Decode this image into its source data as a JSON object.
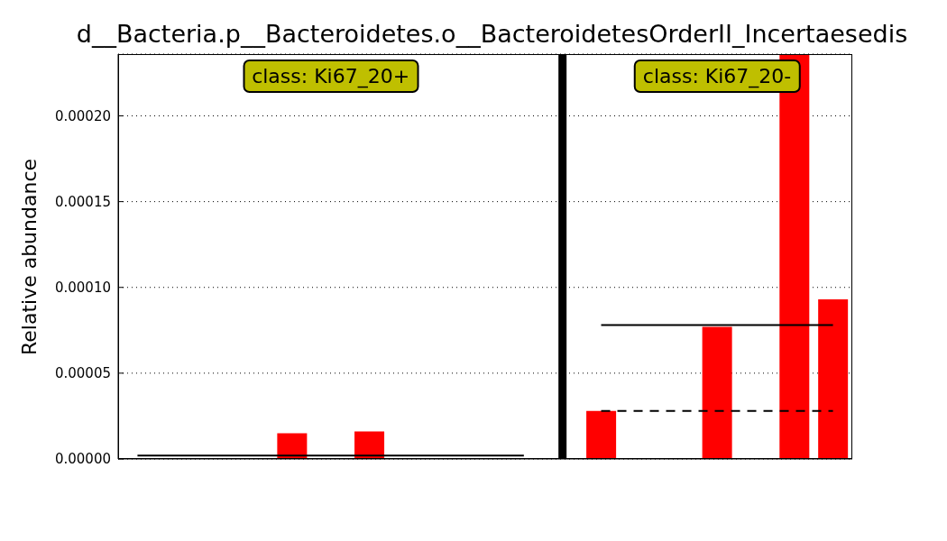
{
  "chart_data": {
    "type": "bar",
    "title": "d__Bacteria.p__Bacteroidetes.o__BacteroidetesOrderII_Incertaesedis",
    "ylabel": "Relative abundance",
    "categories": [
      null,
      null,
      null,
      null,
      null,
      null,
      null,
      null,
      null,
      null,
      null,
      null,
      null,
      null,
      null,
      null,
      null,
      null,
      null
    ],
    "series": [
      {
        "color": "#ff0000",
        "values": [
          0,
          0,
          0,
          0,
          1.5e-05,
          0,
          1.6e-05,
          0,
          0,
          0,
          0,
          null,
          2.8e-05,
          0,
          0,
          7.7e-05,
          0,
          0.000236,
          9.3e-05
        ]
      },
      {
        "type": "line",
        "color": "#000000",
        "line_style": "solid",
        "values": [
          2e-06,
          2e-06,
          2e-06,
          2e-06,
          2e-06,
          2e-06,
          2e-06,
          2e-06,
          2e-06,
          2e-06,
          2e-06,
          null,
          null,
          null,
          null,
          null,
          null,
          null,
          null
        ]
      },
      {
        "type": "line",
        "color": "#000000",
        "line_style": "solid",
        "values": [
          null,
          null,
          null,
          null,
          null,
          null,
          null,
          null,
          null,
          null,
          null,
          null,
          7.8e-05,
          7.8e-05,
          7.8e-05,
          7.8e-05,
          7.8e-05,
          7.8e-05,
          7.8e-05
        ]
      },
      {
        "type": "line",
        "color": "#000000",
        "line_style": "dashed",
        "values": [
          null,
          null,
          null,
          null,
          null,
          null,
          null,
          null,
          null,
          null,
          null,
          null,
          2.8e-05,
          2.8e-05,
          2.8e-05,
          2.8e-05,
          2.8e-05,
          2.8e-05,
          2.8e-05
        ]
      }
    ],
    "ylim": [
      0,
      0.000236
    ],
    "yticks": [
      {
        "value": 0,
        "label": "0.00000"
      },
      {
        "value": 5e-05,
        "label": "0.00005"
      },
      {
        "value": 0.0001,
        "label": "0.00010"
      },
      {
        "value": 0.00015,
        "label": "0.00015"
      },
      {
        "value": 0.0002,
        "label": "0.00020"
      }
    ],
    "tick_labels": "y",
    "grid": "y",
    "marker": "none",
    "annotations": [
      "class: Ki67_20+",
      "class: Ki67_20-"
    ]
  }
}
